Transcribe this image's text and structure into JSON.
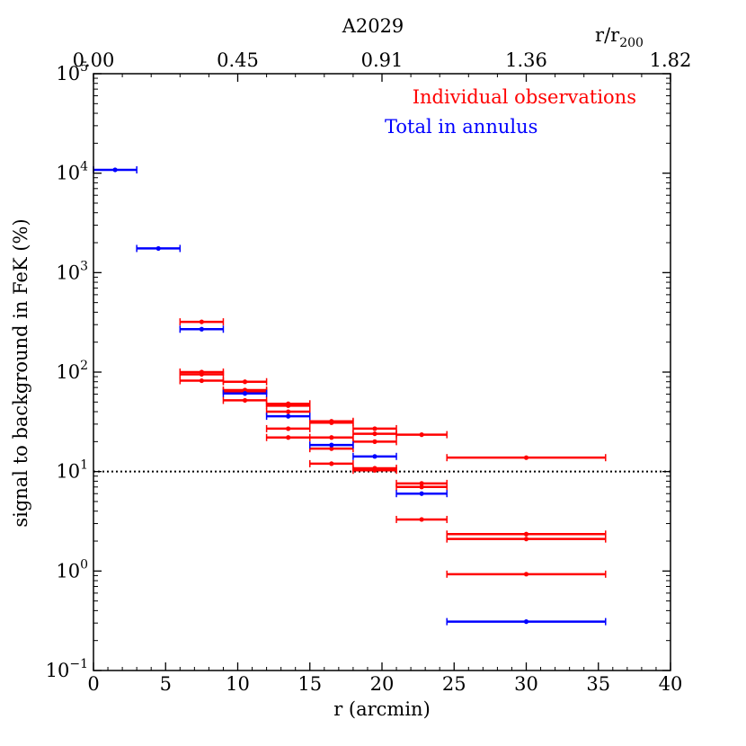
{
  "chart_data": {
    "type": "scatter",
    "title": "A2029",
    "xlabel": "r (arcmin)",
    "ylabel": "signal to background in FeK (%)",
    "x_scale": "linear",
    "y_scale": "log",
    "xlim": [
      0,
      40
    ],
    "ylim": [
      0.1,
      100000
    ],
    "x_ticks": [
      0,
      5,
      10,
      15,
      20,
      25,
      30,
      35,
      40
    ],
    "x_tick_labels": [
      "0",
      "5",
      "10",
      "15",
      "20",
      "25",
      "30",
      "35",
      "40"
    ],
    "y_ticks": [
      0.1,
      1,
      10,
      100,
      1000,
      10000,
      100000
    ],
    "y_tick_labels": [
      {
        "base": "10",
        "exp": "−1"
      },
      {
        "base": "10",
        "exp": "0"
      },
      {
        "base": "10",
        "exp": "1"
      },
      {
        "base": "10",
        "exp": "2"
      },
      {
        "base": "10",
        "exp": "3"
      },
      {
        "base": "10",
        "exp": "4"
      },
      {
        "base": "10",
        "exp": "5"
      }
    ],
    "top_axis": {
      "label_main": "r/r",
      "label_sub": "200",
      "ticks_at_r": [
        0,
        10,
        20,
        30,
        40
      ],
      "tick_labels": [
        "0.00",
        "0.45",
        "0.91",
        "1.36",
        "1.82"
      ]
    },
    "reference_line": {
      "y": 10,
      "style": "dotted",
      "color": "#000000"
    },
    "legend": {
      "position": "top-right",
      "entries": [
        {
          "label": "Individual observations",
          "color": "#ff0000"
        },
        {
          "label": "Total in annulus",
          "color": "#0000ff"
        }
      ]
    },
    "series": [
      {
        "name": "Individual observations",
        "color": "#ff0000",
        "points": [
          {
            "x": 7.5,
            "xmin": 6,
            "xmax": 9,
            "y": 320
          },
          {
            "x": 7.5,
            "xmin": 6,
            "xmax": 9,
            "y": 100
          },
          {
            "x": 7.5,
            "xmin": 6,
            "xmax": 9,
            "y": 95
          },
          {
            "x": 7.5,
            "xmin": 6,
            "xmax": 9,
            "y": 82
          },
          {
            "x": 10.5,
            "xmin": 9,
            "xmax": 12,
            "y": 80
          },
          {
            "x": 10.5,
            "xmin": 9,
            "xmax": 12,
            "y": 66
          },
          {
            "x": 10.5,
            "xmin": 9,
            "xmax": 12,
            "y": 64
          },
          {
            "x": 10.5,
            "xmin": 9,
            "xmax": 12,
            "y": 52
          },
          {
            "x": 13.5,
            "xmin": 12,
            "xmax": 15,
            "y": 48
          },
          {
            "x": 13.5,
            "xmin": 12,
            "xmax": 15,
            "y": 46
          },
          {
            "x": 13.5,
            "xmin": 12,
            "xmax": 15,
            "y": 40
          },
          {
            "x": 13.5,
            "xmin": 12,
            "xmax": 15,
            "y": 27
          },
          {
            "x": 13.5,
            "xmin": 12,
            "xmax": 15,
            "y": 22
          },
          {
            "x": 16.5,
            "xmin": 15,
            "xmax": 18,
            "y": 32
          },
          {
            "x": 16.5,
            "xmin": 15,
            "xmax": 18,
            "y": 31
          },
          {
            "x": 16.5,
            "xmin": 15,
            "xmax": 18,
            "y": 22
          },
          {
            "x": 16.5,
            "xmin": 15,
            "xmax": 18,
            "y": 17
          },
          {
            "x": 16.5,
            "xmin": 15,
            "xmax": 18,
            "y": 12
          },
          {
            "x": 19.5,
            "xmin": 18,
            "xmax": 21,
            "y": 27
          },
          {
            "x": 19.5,
            "xmin": 18,
            "xmax": 21,
            "y": 24
          },
          {
            "x": 19.5,
            "xmin": 18,
            "xmax": 21,
            "y": 20
          },
          {
            "x": 19.5,
            "xmin": 18,
            "xmax": 21,
            "y": 10.8
          },
          {
            "x": 19.5,
            "xmin": 18,
            "xmax": 21,
            "y": 10.3
          },
          {
            "x": 22.75,
            "xmin": 21,
            "xmax": 24.5,
            "y": 23.5
          },
          {
            "x": 22.75,
            "xmin": 21,
            "xmax": 24.5,
            "y": 7.6
          },
          {
            "x": 22.75,
            "xmin": 21,
            "xmax": 24.5,
            "y": 7.0
          },
          {
            "x": 22.75,
            "xmin": 21,
            "xmax": 24.5,
            "y": 3.3
          },
          {
            "x": 30,
            "xmin": 24.5,
            "xmax": 35.5,
            "y": 13.8
          },
          {
            "x": 30,
            "xmin": 24.5,
            "xmax": 35.5,
            "y": 2.35
          },
          {
            "x": 30,
            "xmin": 24.5,
            "xmax": 35.5,
            "y": 2.1
          },
          {
            "x": 30,
            "xmin": 24.5,
            "xmax": 35.5,
            "y": 0.93
          }
        ]
      },
      {
        "name": "Total in annulus",
        "color": "#0000ff",
        "points": [
          {
            "x": 1.5,
            "xmin": 0,
            "xmax": 3,
            "y": 10800
          },
          {
            "x": 4.5,
            "xmin": 3,
            "xmax": 6,
            "y": 1750
          },
          {
            "x": 7.5,
            "xmin": 6,
            "xmax": 9,
            "y": 270
          },
          {
            "x": 10.5,
            "xmin": 9,
            "xmax": 12,
            "y": 61
          },
          {
            "x": 13.5,
            "xmin": 12,
            "xmax": 15,
            "y": 36
          },
          {
            "x": 16.5,
            "xmin": 15,
            "xmax": 18,
            "y": 18.5
          },
          {
            "x": 19.5,
            "xmin": 18,
            "xmax": 21,
            "y": 14.2
          },
          {
            "x": 22.75,
            "xmin": 21,
            "xmax": 24.5,
            "y": 6.0
          },
          {
            "x": 30,
            "xmin": 24.5,
            "xmax": 35.5,
            "y": 0.31
          }
        ]
      }
    ]
  }
}
